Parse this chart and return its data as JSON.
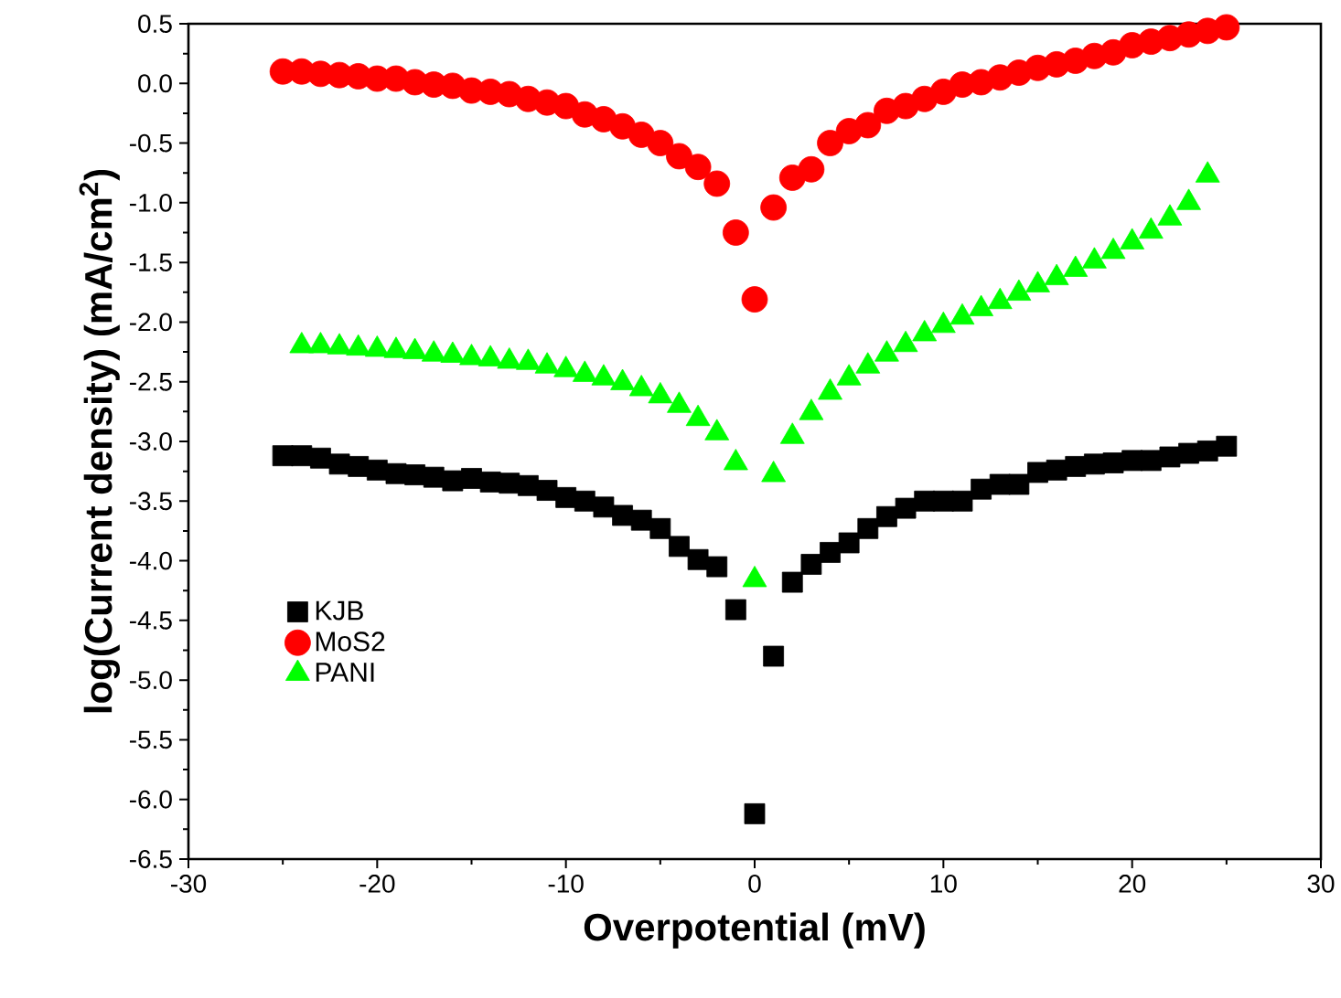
{
  "chart_data": {
    "type": "scatter",
    "xlabel": "Overpotential (mV)",
    "ylabel": "log(Current density) (mA/cm$^{2}$)",
    "xlim": [
      -30,
      30
    ],
    "xticks": [
      -30,
      -20,
      -10,
      0,
      10,
      20,
      30
    ],
    "ylim": [
      -6.5,
      0.5
    ],
    "yticks": [
      0.5,
      {
        "value": 0,
        "label": "0.0"
      },
      -0.5,
      {
        "value": -1,
        "label": "-1.0"
      },
      -1.5,
      {
        "value": -2,
        "label": "-2.0"
      },
      -2.5,
      {
        "value": -3,
        "label": "-3.0"
      },
      -3.5,
      {
        "value": -4,
        "label": "-4.0"
      },
      -4.5,
      {
        "value": -5,
        "label": "-5.0"
      },
      -5.5,
      {
        "value": -6,
        "label": "-6.0"
      },
      -6.5
    ],
    "legend": "bottom left",
    "series": [
      {
        "name": "KJB",
        "color": "#000000",
        "marker": "square",
        "x": [
          -25,
          -24,
          -23,
          -22,
          -21,
          -20,
          -19,
          -18,
          -17,
          -16,
          -15,
          -14,
          -13,
          -12,
          -11,
          -10,
          -9,
          -8,
          -7,
          -6,
          -5,
          -4,
          -3,
          -2,
          -1,
          0,
          1,
          2,
          3,
          4,
          5,
          6,
          7,
          8,
          9,
          10,
          11,
          12,
          13,
          14,
          15,
          16,
          17,
          18,
          19,
          20,
          21,
          22,
          23,
          24,
          25
        ],
        "values": [
          -3.12,
          -3.12,
          -3.14,
          -3.19,
          -3.21,
          -3.24,
          -3.27,
          -3.28,
          -3.3,
          -3.33,
          -3.31,
          -3.34,
          -3.35,
          -3.37,
          -3.41,
          -3.47,
          -3.5,
          -3.55,
          -3.62,
          -3.66,
          -3.73,
          -3.88,
          -3.99,
          -4.05,
          -4.41,
          -6.12,
          -4.8,
          -4.18,
          -4.03,
          -3.93,
          -3.85,
          -3.73,
          -3.63,
          -3.56,
          -3.5,
          -3.5,
          -3.5,
          -3.4,
          -3.36,
          -3.36,
          -3.26,
          -3.24,
          -3.21,
          -3.19,
          -3.18,
          -3.16,
          -3.16,
          -3.13,
          -3.1,
          -3.08,
          -3.04
        ]
      },
      {
        "name": "MoS2",
        "color": "#ff0000",
        "marker": "circle",
        "x": [
          -25,
          -24,
          -23,
          -22,
          -21,
          -20,
          -19,
          -18,
          -17,
          -16,
          -15,
          -14,
          -13,
          -12,
          -11,
          -10,
          -9,
          -8,
          -7,
          -6,
          -5,
          -4,
          -3,
          -2,
          -1,
          0,
          1,
          2,
          3,
          4,
          5,
          6,
          7,
          8,
          9,
          10,
          11,
          12,
          13,
          14,
          15,
          16,
          17,
          18,
          19,
          20,
          21,
          22,
          23,
          24,
          25
        ],
        "values": [
          0.1,
          0.1,
          0.08,
          0.07,
          0.06,
          0.04,
          0.04,
          0.01,
          -0.01,
          -0.02,
          -0.06,
          -0.07,
          -0.09,
          -0.13,
          -0.16,
          -0.19,
          -0.26,
          -0.3,
          -0.36,
          -0.43,
          -0.5,
          -0.61,
          -0.7,
          -0.84,
          -1.25,
          -1.81,
          -1.04,
          -0.79,
          -0.72,
          -0.5,
          -0.4,
          -0.35,
          -0.23,
          -0.19,
          -0.13,
          -0.07,
          -0.01,
          0.01,
          0.05,
          0.09,
          0.13,
          0.16,
          0.19,
          0.23,
          0.26,
          0.32,
          0.35,
          0.38,
          0.41,
          0.44,
          0.47
        ]
      },
      {
        "name": "PANI",
        "color": "#00ff00",
        "marker": "triangle",
        "x": [
          -24,
          -23,
          -22,
          -21,
          -20,
          -19,
          -18,
          -17,
          -16,
          -15,
          -14,
          -13,
          -12,
          -11,
          -10,
          -9,
          -8,
          -7,
          -6,
          -5,
          -4,
          -3,
          -2,
          -1,
          0,
          1,
          2,
          3,
          4,
          5,
          6,
          7,
          8,
          9,
          10,
          11,
          12,
          13,
          14,
          15,
          16,
          17,
          18,
          19,
          20,
          21,
          22,
          23,
          24
        ],
        "values": [
          -2.2,
          -2.2,
          -2.21,
          -2.22,
          -2.23,
          -2.24,
          -2.25,
          -2.27,
          -2.28,
          -2.3,
          -2.31,
          -2.33,
          -2.34,
          -2.37,
          -2.4,
          -2.44,
          -2.47,
          -2.51,
          -2.56,
          -2.62,
          -2.7,
          -2.81,
          -2.93,
          -3.18,
          -4.16,
          -3.28,
          -2.96,
          -2.76,
          -2.59,
          -2.47,
          -2.37,
          -2.27,
          -2.19,
          -2.1,
          -2.03,
          -1.96,
          -1.89,
          -1.83,
          -1.76,
          -1.69,
          -1.63,
          -1.56,
          -1.49,
          -1.41,
          -1.33,
          -1.24,
          -1.13,
          -1.0,
          -0.77
        ]
      }
    ]
  }
}
